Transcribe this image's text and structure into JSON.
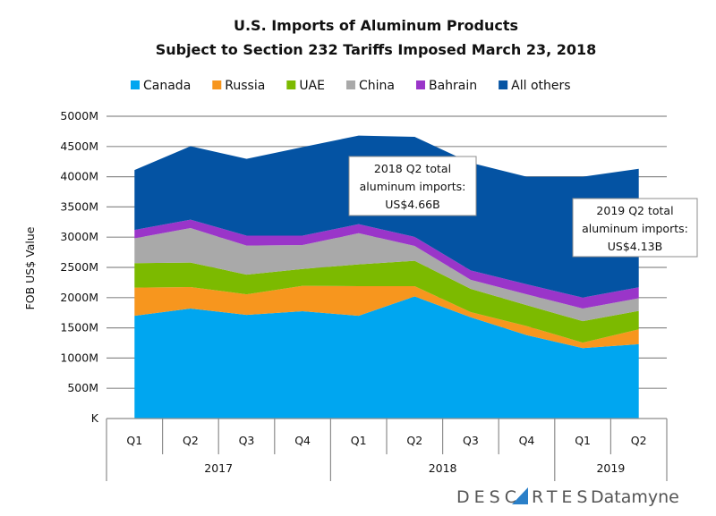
{
  "chart_data": {
    "type": "area",
    "stacked": true,
    "title": [
      "U.S. Imports of Aluminum Products",
      "Subject to Section 232 Tariffs Imposed March 23, 2018"
    ],
    "ylabel": "FOB US$ Value",
    "xlabel": "",
    "ylim": [
      0,
      5000
    ],
    "yticks": [
      {
        "value": 0,
        "label": "K"
      },
      {
        "value": 500,
        "label": "500M"
      },
      {
        "value": 1000,
        "label": "1000M"
      },
      {
        "value": 1500,
        "label": "1500M"
      },
      {
        "value": 2000,
        "label": "2000M"
      },
      {
        "value": 2500,
        "label": "2500M"
      },
      {
        "value": 3000,
        "label": "3000M"
      },
      {
        "value": 3500,
        "label": "3500M"
      },
      {
        "value": 4000,
        "label": "4000M"
      },
      {
        "value": 4500,
        "label": "4500M"
      },
      {
        "value": 5000,
        "label": "5000M"
      }
    ],
    "grid": true,
    "legend_position": "top",
    "categories": [
      "Q1",
      "Q2",
      "Q3",
      "Q4",
      "Q1",
      "Q2",
      "Q3",
      "Q4",
      "Q1",
      "Q2"
    ],
    "category_groups": [
      {
        "label": "2017",
        "count": 4
      },
      {
        "label": "2018",
        "count": 4
      },
      {
        "label": "2019",
        "count": 2
      }
    ],
    "series": [
      {
        "name": "Canada",
        "color": "#00a6f0",
        "values": [
          1700,
          1820,
          1715,
          1775,
          1700,
          2020,
          1675,
          1380,
          1165,
          1230
        ]
      },
      {
        "name": "Russia",
        "color": "#f7961e",
        "values": [
          465,
          355,
          340,
          420,
          490,
          170,
          85,
          150,
          90,
          245
        ]
      },
      {
        "name": "UAE",
        "color": "#7cba00",
        "values": [
          405,
          405,
          325,
          280,
          360,
          420,
          385,
          345,
          355,
          305
        ]
      },
      {
        "name": "China",
        "color": "#a9a9a9",
        "values": [
          410,
          570,
          480,
          395,
          515,
          245,
          150,
          180,
          210,
          210
        ]
      },
      {
        "name": "Bahrain",
        "color": "#9a35c9",
        "values": [
          140,
          140,
          165,
          155,
          150,
          150,
          155,
          165,
          180,
          180
        ]
      },
      {
        "name": "All others",
        "color": "#0453a3",
        "values": [
          990,
          1215,
          1270,
          1465,
          1465,
          1655,
          1780,
          1780,
          2000,
          1960
        ]
      }
    ],
    "annotations": [
      {
        "lines": [
          "2018 Q2 total",
          "aluminum imports:",
          "US$4.66B"
        ]
      },
      {
        "lines": [
          "2019 Q2 total",
          "aluminum imports:",
          "US$4.13B"
        ]
      }
    ]
  },
  "branding": {
    "logo_text": "DESCARTES",
    "logo_suffix": "Datamyne"
  }
}
